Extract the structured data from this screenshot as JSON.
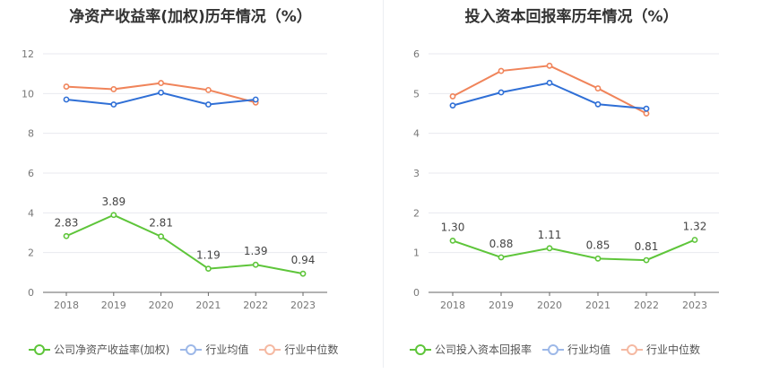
{
  "colors": {
    "company": "#5ec53a",
    "average": "#2f6fd6",
    "median": "#f0845a",
    "average_legend": "#9db8e8",
    "median_legend": "#f5b9a2"
  },
  "chart_data": [
    {
      "type": "line",
      "title": "净资产收益率(加权)历年情况（%）",
      "categories": [
        "2018",
        "2019",
        "2020",
        "2021",
        "2022",
        "2023"
      ],
      "ylim": [
        0,
        12
      ],
      "yticks": [
        "0",
        "2",
        "4",
        "6",
        "8",
        "10",
        "12"
      ],
      "grid": true,
      "legend_position": "bottom-left",
      "series": [
        {
          "name": "公司净资产收益率(加权)",
          "key": "company",
          "values": [
            2.83,
            3.89,
            2.81,
            1.19,
            1.39,
            0.94
          ],
          "labels": [
            "2.83",
            "3.89",
            "2.81",
            "1.19",
            "1.39",
            "0.94"
          ]
        },
        {
          "name": "行业均值",
          "key": "average",
          "values": [
            9.7,
            9.45,
            10.05,
            9.45,
            9.7,
            null
          ]
        },
        {
          "name": "行业中位数",
          "key": "median",
          "values": [
            10.35,
            10.22,
            10.53,
            10.18,
            9.55,
            null
          ]
        }
      ]
    },
    {
      "type": "line",
      "title": "投入资本回报率历年情况（%）",
      "categories": [
        "2018",
        "2019",
        "2020",
        "2021",
        "2022",
        "2023"
      ],
      "ylim": [
        0,
        6
      ],
      "yticks": [
        "0",
        "1",
        "2",
        "3",
        "4",
        "5",
        "6"
      ],
      "grid": true,
      "legend_position": "bottom-left",
      "series": [
        {
          "name": "公司投入资本回报率",
          "key": "company",
          "values": [
            1.3,
            0.88,
            1.11,
            0.85,
            0.81,
            1.32
          ],
          "labels": [
            "1.30",
            "0.88",
            "1.11",
            "0.85",
            "0.81",
            "1.32"
          ]
        },
        {
          "name": "行业均值",
          "key": "average",
          "values": [
            4.7,
            5.03,
            5.27,
            4.73,
            4.62,
            null
          ]
        },
        {
          "name": "行业中位数",
          "key": "median",
          "values": [
            4.93,
            5.57,
            5.7,
            5.13,
            4.5,
            null
          ]
        }
      ]
    }
  ]
}
